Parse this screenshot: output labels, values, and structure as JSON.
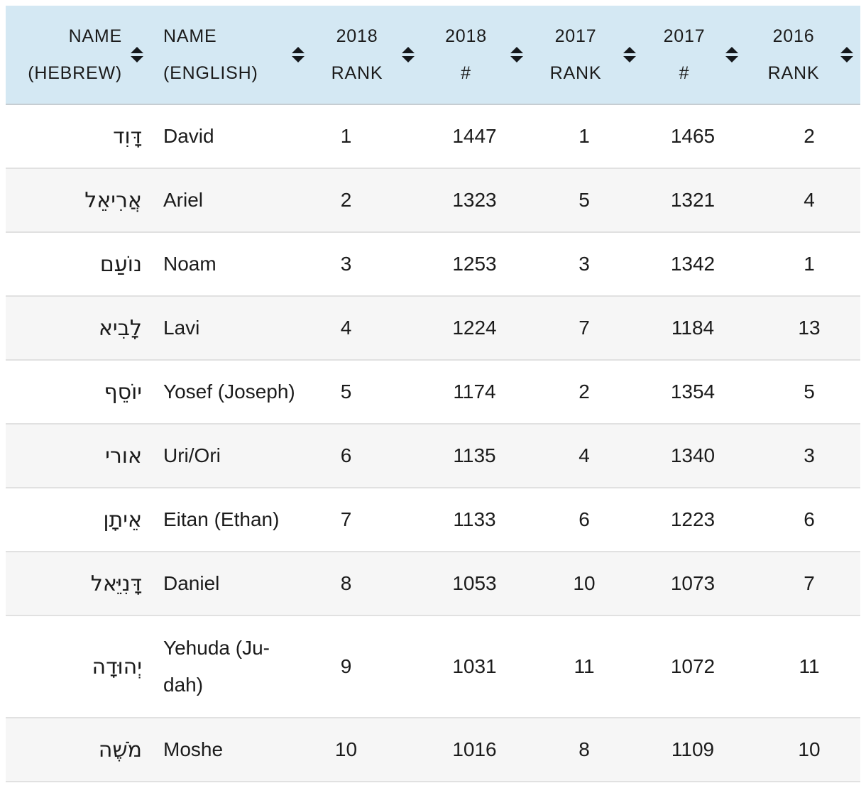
{
  "theme": {
    "header_bg": "#d4e8f3",
    "stripe_bg": "#f6f6f6",
    "row_border": "#e1e1e1",
    "header_border": "#c6cdd2",
    "text_color": "#1b1b1b"
  },
  "icons": {
    "sort": "up-down-triangles"
  },
  "table": {
    "columns": [
      {
        "id": "hebrew",
        "label": "NAME\n(HEBREW)"
      },
      {
        "id": "english",
        "label": "NAME\n(ENGLISH)"
      },
      {
        "id": "rank2018",
        "label": "2018\nRANK"
      },
      {
        "id": "num2018",
        "label": "2018\n#"
      },
      {
        "id": "rank2017",
        "label": "2017\nRANK"
      },
      {
        "id": "num2017",
        "label": "2017\n#"
      },
      {
        "id": "rank2016",
        "label": "2016\nRANK"
      }
    ],
    "rows": [
      {
        "hebrew": "דָּוִד",
        "english": "David",
        "rank2018": "1",
        "num2018": "1447",
        "rank2017": "1",
        "num2017": "1465",
        "rank2016": "2"
      },
      {
        "hebrew": "אֲרִיאֵל",
        "english": "Ariel",
        "rank2018": "2",
        "num2018": "1323",
        "rank2017": "5",
        "num2017": "1321",
        "rank2016": "4"
      },
      {
        "hebrew": "נוֹעַם",
        "english": "Noam",
        "rank2018": "3",
        "num2018": "1253",
        "rank2017": "3",
        "num2017": "1342",
        "rank2016": "1"
      },
      {
        "hebrew": "לָבִיא",
        "english": "Lavi",
        "rank2018": "4",
        "num2018": "1224",
        "rank2017": "7",
        "num2017": "1184",
        "rank2016": "13"
      },
      {
        "hebrew": "יוֹסֵף",
        "english": "Yosef (Joseph)",
        "rank2018": "5",
        "num2018": "1174",
        "rank2017": "2",
        "num2017": "1354",
        "rank2016": "5"
      },
      {
        "hebrew": "אורי",
        "english": "Uri/Ori",
        "rank2018": "6",
        "num2018": "1135",
        "rank2017": "4",
        "num2017": "1340",
        "rank2016": "3"
      },
      {
        "hebrew": "אֵיתָן",
        "english": "Eitan (Ethan)",
        "rank2018": "7",
        "num2018": "1133",
        "rank2017": "6",
        "num2017": "1223",
        "rank2016": "6"
      },
      {
        "hebrew": "דָּנִיֵּאל",
        "english": "Daniel",
        "rank2018": "8",
        "num2018": "1053",
        "rank2017": "10",
        "num2017": "1073",
        "rank2016": "7"
      },
      {
        "hebrew": "יְהוּדָה",
        "english": "Yehuda (Ju-\ndah)",
        "rank2018": "9",
        "num2018": "1031",
        "rank2017": "11",
        "num2017": "1072",
        "rank2016": "11"
      },
      {
        "hebrew": "מֹשֶׁה",
        "english": "Moshe",
        "rank2018": "10",
        "num2018": "1016",
        "rank2017": "8",
        "num2017": "1109",
        "rank2016": "10"
      }
    ]
  }
}
